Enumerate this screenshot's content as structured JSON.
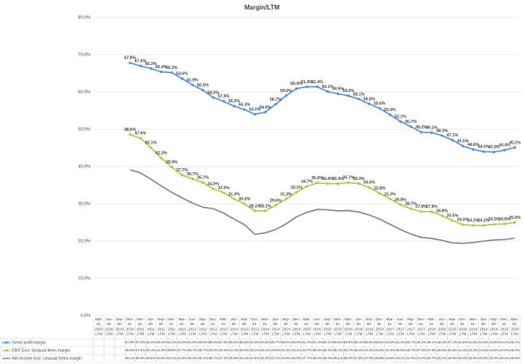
{
  "chart_data": {
    "type": "line",
    "title": "Margin/LTM",
    "categories": [
      "Mar-31-2010 LTM",
      "Jun-30-2010 LTM",
      "Sep-30-2010 LTM",
      "Dec-31-2010 LTM",
      "Mar-31-2011 LTM",
      "Jun-30-2011 LTM",
      "Sep-30-2011 LTM",
      "Dec-31-2011 LTM",
      "Mar-31-2012 LTM",
      "Jun-30-2012 LTM",
      "Sep-30-2012 LTM",
      "Dec-31-2012 LTM",
      "Mar-31-2013 LTM",
      "Jun-30-2013 LTM",
      "Sep-30-2013 LTM",
      "Dec-31-2013 LTM",
      "Mar-31-2014 LTM",
      "Jun-30-2014 LTM",
      "Sep-30-2014 LTM",
      "Dec-31-2014 LTM",
      "Mar-31-2015 LTM",
      "Jun-30-2015 LTM",
      "Sep-30-2015 LTM",
      "Dec-31-2015 LTM",
      "Mar-31-2016 LTM",
      "Jun-30-2016 LTM",
      "Sep-30-2016 LTM",
      "Dec-31-2016 LTM",
      "Mar-31-2017 LTM",
      "Jun-30-2017 LTM",
      "Sep-30-2017 LTM",
      "Dec-31-2017 LTM",
      "Mar-31-2018 LTM",
      "Jun-30-2018 LTM",
      "Sep-30-2018 LTM",
      "Dec-31-2018 LTM",
      "Mar-31-2019 LTM",
      "Jun-30-2019 LTM",
      "Sep-30-2019 LTM",
      "Dec-31-2019 LTM",
      "Mar-31-2020 LTM"
    ],
    "series": [
      {
        "name": "Gross profit margin",
        "color": "#4a8edb",
        "marker": true,
        "show_labels": true,
        "values": [
          null,
          null,
          null,
          67.8,
          67.0,
          66.3,
          65.4,
          65.2,
          63.6,
          61.9,
          60.5,
          58.5,
          57.5,
          56.2,
          55.3,
          54.0,
          54.6,
          56.7,
          59.0,
          60.9,
          61.4,
          61.4,
          60.1,
          59.5,
          59.0,
          58.1,
          56.8,
          55.6,
          53.9,
          52.1,
          50.7,
          49.2,
          49.1,
          48.3,
          47.1,
          45.5,
          44.6,
          44.0,
          43.9,
          44.4,
          45.1
        ],
        "value_labels": [
          null,
          null,
          null,
          "67.8%",
          "67.0%",
          "66.3%",
          "65.4%",
          "65.2%",
          "63.6%",
          "61.9%",
          "60.5%",
          "58.5%",
          "57.5%",
          "56.2%",
          "55.3%",
          "54.0%",
          "54.6%",
          "56.7%",
          "59.0%",
          "60.9%",
          "61.4%",
          "61.4%",
          "60.1%",
          "59.5%",
          "59.0%",
          "58.1%",
          "56.8%",
          "55.6%",
          "53.9%",
          "52.1%",
          "50.7%",
          "49.2%",
          "49.1%",
          "48.3%",
          "47.1%",
          "45.5%",
          "44.6%",
          "44.0%",
          "43.9%",
          "44.4%",
          "45.1%"
        ]
      },
      {
        "name": "EBIT Excl. Unusual Items margin",
        "color": "#9ccf3c",
        "marker": true,
        "show_labels": true,
        "values": [
          null,
          null,
          null,
          48.6,
          47.6,
          45.1,
          42.3,
          39.9,
          37.7,
          36.7,
          35.7,
          34.0,
          33.0,
          31.3,
          30.0,
          28.1,
          28.1,
          29.6,
          31.3,
          33.1,
          34.7,
          35.6,
          35.4,
          35.4,
          35.7,
          35.4,
          34.4,
          32.8,
          31.3,
          29.8,
          28.7,
          27.9,
          27.9,
          26.8,
          25.5,
          24.4,
          24.2,
          24.2,
          24.5,
          24.6,
          25.0
        ],
        "value_labels": [
          null,
          null,
          null,
          "48.6%",
          "47.6%",
          "45.1%",
          "42.3%",
          "39.9%",
          "37.7%",
          "36.7%",
          "35.7%",
          "34.0%",
          "33.0%",
          "31.3%",
          "30.0%",
          "28.1%",
          "28.1%",
          "29.6%",
          "31.3%",
          "33.1%",
          "34.7%",
          "35.6%",
          "35.4%",
          "35.4%",
          "35.7%",
          "35.4%",
          "34.4%",
          "32.8%",
          "31.3%",
          "29.8%",
          "28.7%",
          "27.9%",
          "27.9%",
          "26.8%",
          "25.5%",
          "24.4%",
          "24.2%",
          "24.2%",
          "24.5%",
          "24.6%",
          "25.0%"
        ]
      },
      {
        "name": "Net Income Excl. Unusual Items margin",
        "color": "#7f7f7f",
        "marker": false,
        "show_labels": false,
        "values": [
          null,
          null,
          null,
          39.1,
          38.3,
          36.6,
          34.8,
          33.1,
          31.6,
          30.2,
          29.1,
          28.7,
          27.5,
          25.9,
          24.4,
          21.8,
          22.2,
          23.1,
          24.6,
          26.5,
          27.7,
          28.5,
          28.4,
          28.1,
          28.2,
          27.8,
          27.0,
          25.9,
          24.5,
          23.1,
          21.9,
          21.0,
          20.7,
          20.2,
          19.5,
          19.4,
          19.6,
          20.0,
          20.3,
          20.4,
          20.8
        ],
        "value_labels": [
          null,
          null,
          null,
          "39.1%",
          "38.3%",
          "36.6%",
          "34.8%",
          "33.1%",
          "31.6%",
          "30.2%",
          "29.1%",
          "28.7%",
          "27.5%",
          "25.9%",
          "24.4%",
          "21.8%",
          "22.2%",
          "23.1%",
          "24.6%",
          "26.5%",
          "27.7%",
          "28.5%",
          "28.4%",
          "28.1%",
          "28.2%",
          "27.8%",
          "27.0%",
          "25.9%",
          "24.5%",
          "23.1%",
          "21.9%",
          "21.0%",
          "20.7%",
          "20.2%",
          "19.5%",
          "19.4%",
          "19.6%",
          "20.0%",
          "20.3%",
          "20.4%",
          "20.8%"
        ]
      }
    ],
    "ylim": [
      0,
      80
    ],
    "yticks": [
      {
        "value": 0,
        "label": "0.0%"
      },
      {
        "value": 10,
        "label": "10.0%"
      },
      {
        "value": 20,
        "label": "20.0%"
      },
      {
        "value": 30,
        "label": "30.0%"
      },
      {
        "value": 40,
        "label": "40.0%"
      },
      {
        "value": 50,
        "label": "50.0%"
      },
      {
        "value": 60,
        "label": "60.0%"
      },
      {
        "value": 70,
        "label": "70.0%"
      },
      {
        "value": 80,
        "label": "80.0%"
      }
    ],
    "grid": true
  }
}
